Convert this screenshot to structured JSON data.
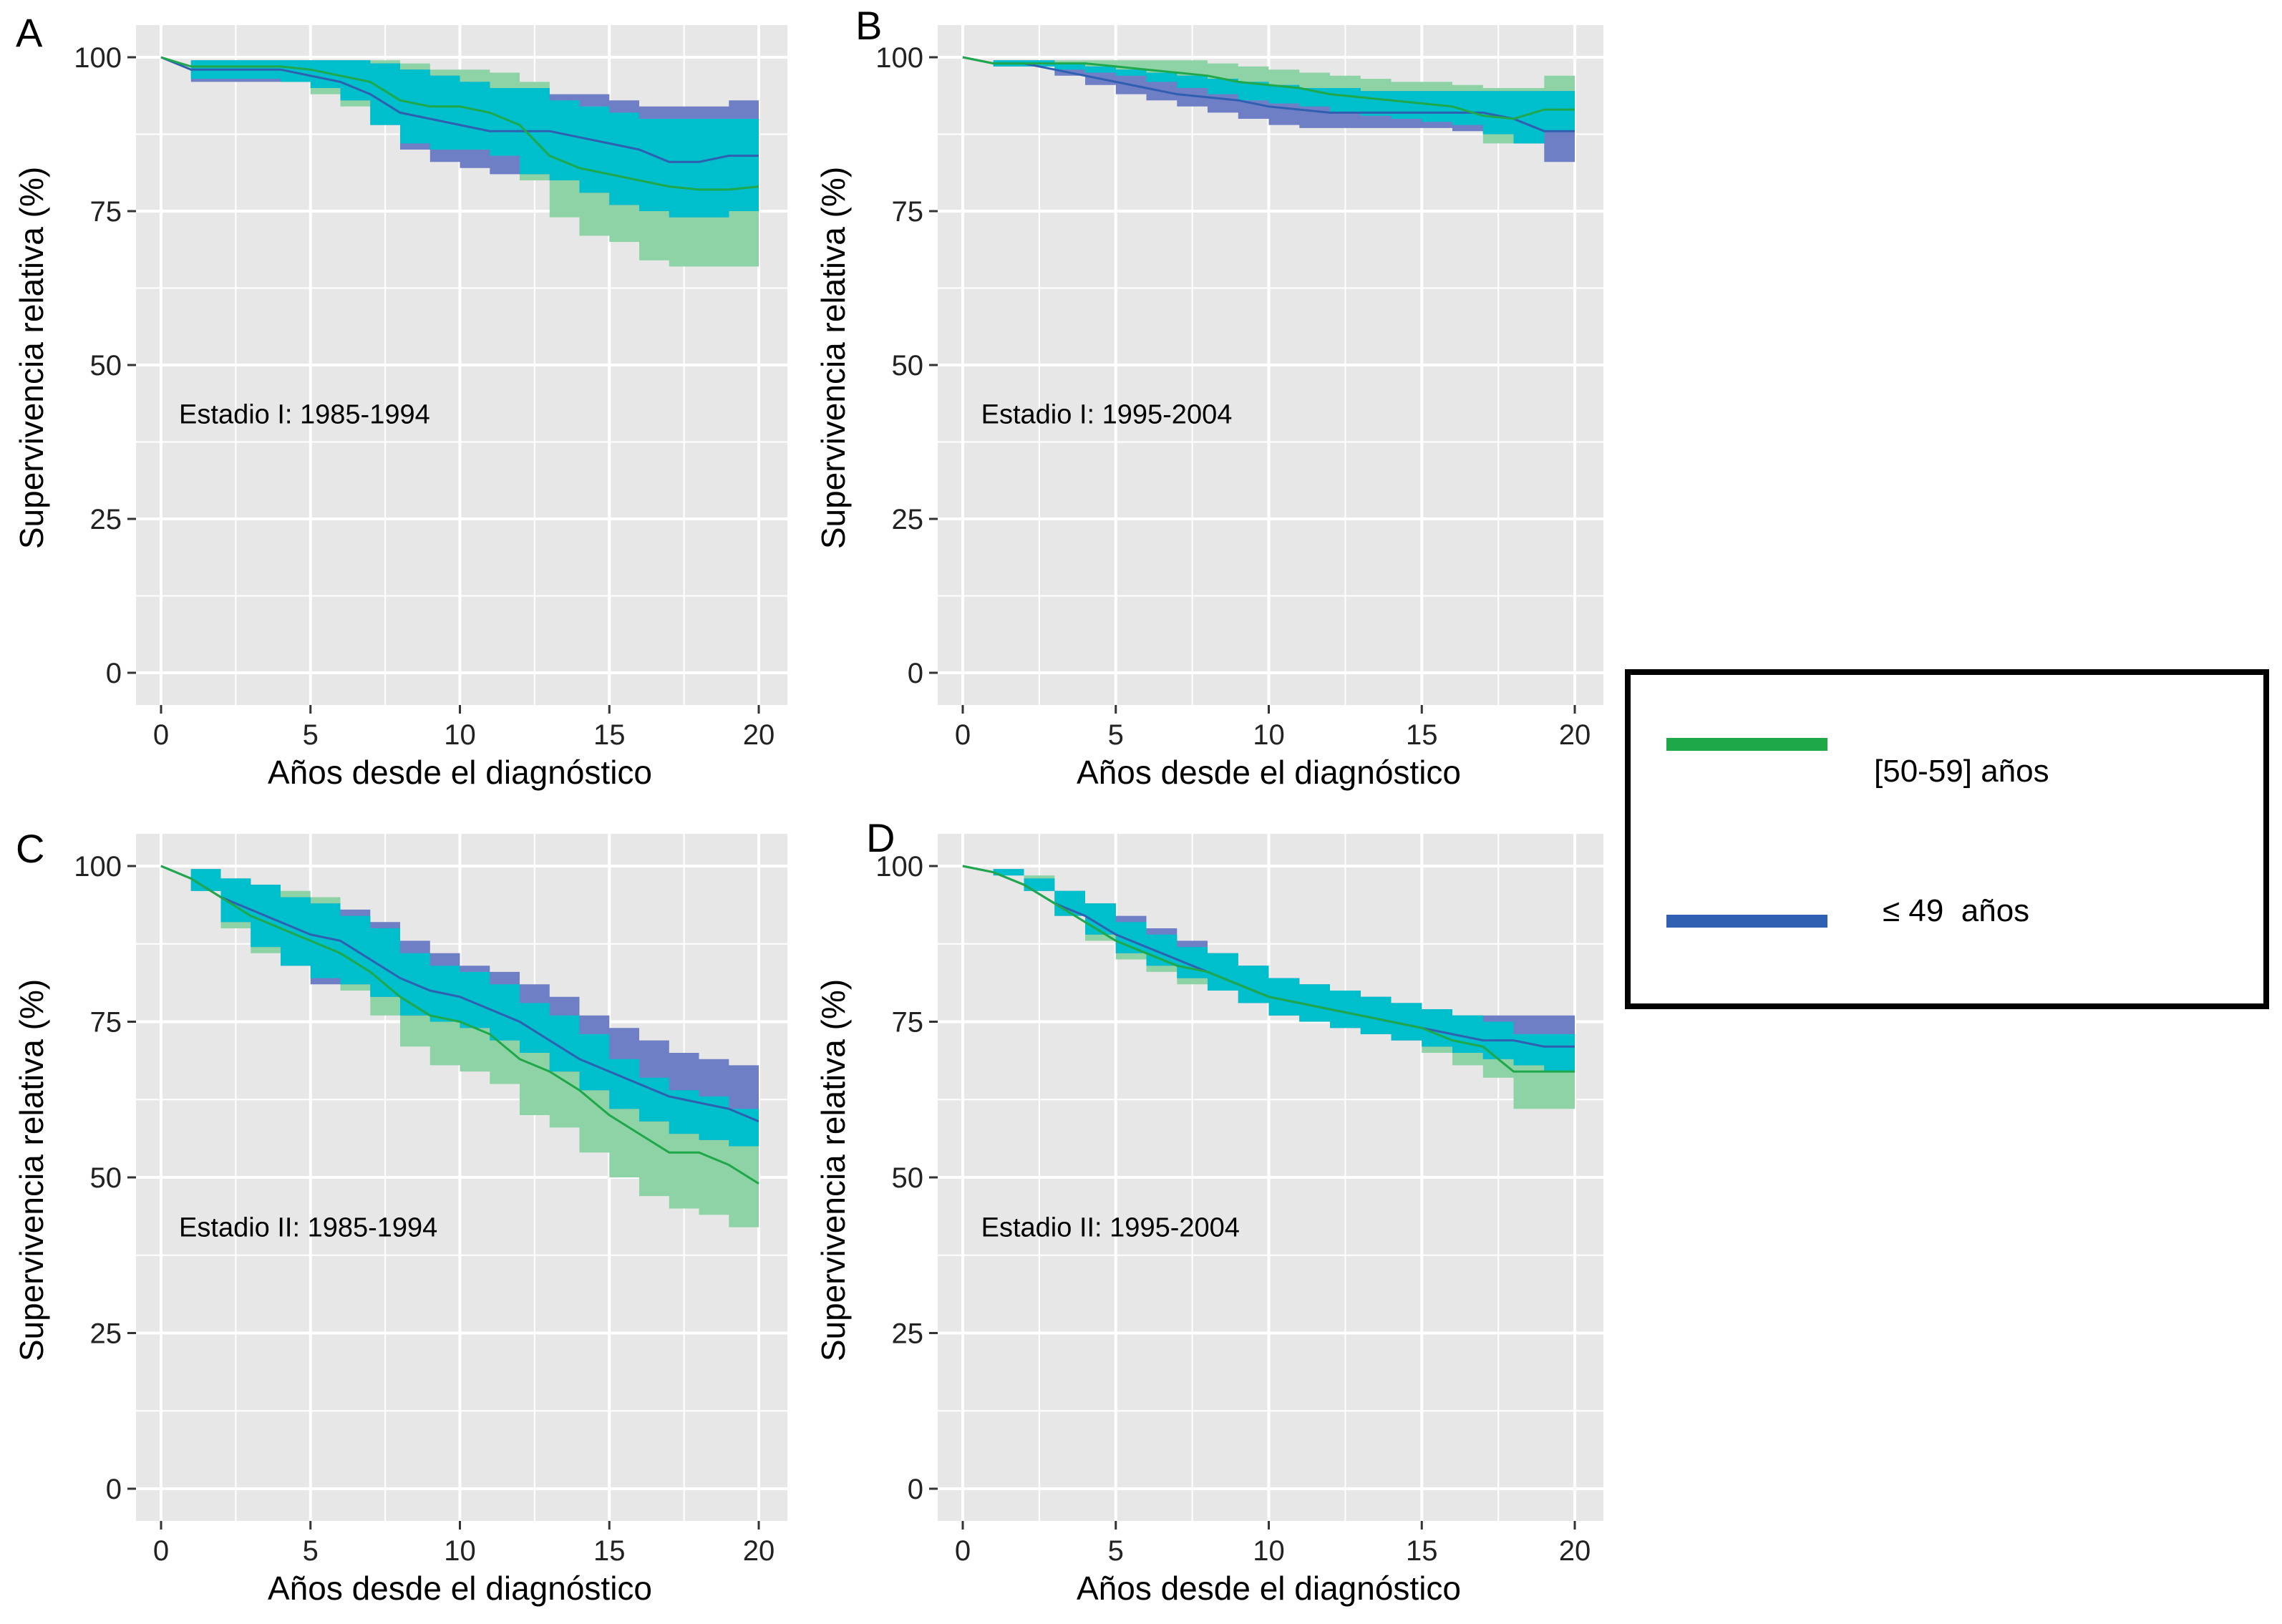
{
  "colors": {
    "panel_bg": "#e7e7e7",
    "grid": "#ffffff",
    "green_line": "#1fa84a",
    "green_band": "#8dd3a6",
    "blue_line": "#2f5fb0",
    "blue_band": "#6f7fc6",
    "overlap_band": "#00bfcc"
  },
  "legend": {
    "entries": [
      {
        "label": "[50-59] años",
        "color": "#1fa84a"
      },
      {
        "label": "≤ 49  años",
        "color": "#2f5fb0"
      }
    ]
  },
  "chart_data": [
    {
      "type": "line",
      "panel_letter": "A",
      "annotation": "Estadio I: 1985-1994",
      "xlabel": "Años desde el diagnóstico",
      "ylabel": "Supervivencia relativa (%)",
      "xlim": [
        0,
        20
      ],
      "ylim": [
        0,
        100
      ],
      "xticks": [
        0,
        5,
        10,
        15,
        20
      ],
      "yticks": [
        0,
        25,
        50,
        75,
        100
      ],
      "grid": true,
      "series": [
        {
          "name": "[50-59] años",
          "x": [
            0,
            1,
            2,
            3,
            4,
            5,
            6,
            7,
            8,
            9,
            10,
            11,
            12,
            13,
            14,
            15,
            16,
            17,
            18,
            19,
            20
          ],
          "y": [
            100,
            98.5,
            98.5,
            98.5,
            98.5,
            98,
            97,
            96,
            93,
            92,
            92,
            91,
            89,
            84,
            82,
            81,
            80,
            79,
            78.5,
            78.5,
            79
          ],
          "lower": [
            100,
            96.5,
            96.5,
            96.5,
            96,
            94,
            92,
            89,
            86,
            85,
            85,
            84,
            80,
            74,
            71,
            70,
            67,
            66,
            66,
            66,
            66
          ],
          "upper": [
            100,
            99.5,
            99.5,
            99.5,
            99.5,
            99.5,
            99.5,
            99.5,
            99,
            98,
            98,
            97.5,
            96,
            93,
            92,
            91,
            90,
            90,
            90,
            90,
            90
          ]
        },
        {
          "name": "≤ 49  años",
          "x": [
            0,
            1,
            2,
            3,
            4,
            5,
            6,
            7,
            8,
            9,
            10,
            11,
            12,
            13,
            14,
            15,
            16,
            17,
            18,
            19,
            20
          ],
          "y": [
            100,
            98,
            98,
            98,
            98,
            97,
            96,
            94,
            91,
            90,
            89,
            88,
            88,
            88,
            87,
            86,
            85,
            83,
            83,
            84,
            84
          ],
          "lower": [
            100,
            96,
            96,
            96,
            96,
            95,
            93,
            89,
            85,
            83,
            82,
            81,
            81,
            80,
            78,
            76,
            75,
            74,
            74,
            75,
            75
          ],
          "upper": [
            100,
            99.5,
            99.5,
            99.5,
            99.5,
            99.5,
            99.5,
            99,
            98,
            97,
            96,
            95,
            95,
            94,
            94,
            93,
            92,
            92,
            92,
            93,
            93
          ]
        }
      ]
    },
    {
      "type": "line",
      "panel_letter": "B",
      "annotation": "Estadio I: 1995-2004",
      "xlabel": "Años desde el diagnóstico",
      "ylabel": "Supervivencia relativa (%)",
      "xlim": [
        0,
        20
      ],
      "ylim": [
        0,
        100
      ],
      "xticks": [
        0,
        5,
        10,
        15,
        20
      ],
      "yticks": [
        0,
        25,
        50,
        75,
        100
      ],
      "grid": true,
      "series": [
        {
          "name": "[50-59] años",
          "x": [
            0,
            1,
            2,
            3,
            4,
            5,
            6,
            7,
            8,
            9,
            10,
            11,
            12,
            13,
            14,
            15,
            16,
            17,
            18,
            19,
            20
          ],
          "y": [
            100,
            99,
            99,
            99,
            99,
            98.5,
            98,
            97.5,
            97,
            96,
            95.5,
            95,
            94,
            93.5,
            93,
            92.5,
            92,
            90.5,
            90,
            91.5,
            91.5
          ],
          "lower": [
            100,
            98.5,
            98.5,
            98,
            97.5,
            97,
            96,
            95,
            94,
            93,
            92.5,
            92,
            91,
            90.5,
            90,
            89.5,
            89,
            86,
            86,
            88,
            88
          ],
          "upper": [
            100,
            99.5,
            99.5,
            99.5,
            99.5,
            99.5,
            99.5,
            99.5,
            99,
            98.5,
            98,
            97.5,
            97,
            96.5,
            96,
            96,
            95.5,
            95,
            95,
            97,
            97
          ]
        },
        {
          "name": "≤ 49  años",
          "x": [
            0,
            1,
            2,
            3,
            4,
            5,
            6,
            7,
            8,
            9,
            10,
            11,
            12,
            13,
            14,
            15,
            16,
            17,
            18,
            19,
            20
          ],
          "y": [
            100,
            99,
            99,
            98,
            97,
            96,
            95,
            94,
            93.5,
            93,
            92,
            91.5,
            91,
            91,
            91,
            91,
            91,
            91,
            90,
            88,
            88
          ],
          "lower": [
            100,
            98.5,
            98.5,
            97,
            95.5,
            94,
            93,
            92,
            91,
            90,
            89,
            88.5,
            88.5,
            88.5,
            88.5,
            88.5,
            88,
            87.5,
            86,
            83,
            83
          ],
          "upper": [
            100,
            99.5,
            99.5,
            99,
            98.5,
            98,
            97.5,
            97,
            96.5,
            96,
            95.5,
            95,
            95,
            94.5,
            94.5,
            94.5,
            94.5,
            94.5,
            94.5,
            94.5,
            94.5
          ]
        }
      ]
    },
    {
      "type": "line",
      "panel_letter": "C",
      "annotation": "Estadio II: 1985-1994",
      "xlabel": "Años desde el diagnóstico",
      "ylabel": "Supervivencia relativa (%)",
      "xlim": [
        0,
        20
      ],
      "ylim": [
        0,
        100
      ],
      "xticks": [
        0,
        5,
        10,
        15,
        20
      ],
      "yticks": [
        0,
        25,
        50,
        75,
        100
      ],
      "grid": true,
      "series": [
        {
          "name": "[50-59] años",
          "x": [
            0,
            1,
            2,
            3,
            4,
            5,
            6,
            7,
            8,
            9,
            10,
            11,
            12,
            13,
            14,
            15,
            16,
            17,
            18,
            19,
            20
          ],
          "y": [
            100,
            98,
            95,
            92,
            90,
            88,
            86,
            83,
            79,
            76,
            75,
            73,
            69,
            67,
            64,
            60,
            57,
            54,
            54,
            52,
            49
          ],
          "lower": [
            100,
            96,
            90,
            86,
            84,
            82,
            80,
            76,
            71,
            68,
            67,
            65,
            60,
            58,
            54,
            50,
            47,
            45,
            44,
            42,
            40
          ],
          "upper": [
            100,
            99.5,
            98,
            97,
            96,
            95,
            92,
            90,
            86,
            84,
            83,
            81,
            78,
            76,
            73,
            69,
            66,
            64,
            63,
            61,
            59
          ]
        },
        {
          "name": "≤ 49  años",
          "x": [
            0,
            1,
            2,
            3,
            4,
            5,
            6,
            7,
            8,
            9,
            10,
            11,
            12,
            13,
            14,
            15,
            16,
            17,
            18,
            19,
            20
          ],
          "y": [
            100,
            98,
            95,
            93,
            91,
            89,
            88,
            85,
            82,
            80,
            79,
            77,
            75,
            72,
            69,
            67,
            65,
            63,
            62,
            61,
            59
          ],
          "lower": [
            100,
            96,
            91,
            87,
            84,
            81,
            81,
            79,
            76,
            75,
            74,
            72,
            70,
            67,
            64,
            61,
            59,
            57,
            56,
            55,
            53
          ],
          "upper": [
            100,
            99.5,
            98,
            97,
            95,
            94,
            93,
            91,
            88,
            86,
            84,
            83,
            81,
            79,
            76,
            74,
            72,
            70,
            69,
            68,
            66
          ]
        }
      ]
    },
    {
      "type": "line",
      "panel_letter": "D",
      "annotation": "Estadio II: 1995-2004",
      "xlabel": "Años desde el diagnóstico",
      "ylabel": "Supervivencia relativa (%)",
      "xlim": [
        0,
        20
      ],
      "ylim": [
        0,
        100
      ],
      "xticks": [
        0,
        5,
        10,
        15,
        20
      ],
      "yticks": [
        0,
        25,
        50,
        75,
        100
      ],
      "grid": true,
      "series": [
        {
          "name": "[50-59] años",
          "x": [
            0,
            1,
            2,
            3,
            4,
            5,
            6,
            7,
            8,
            9,
            10,
            11,
            12,
            13,
            14,
            15,
            16,
            17,
            18,
            19,
            20
          ],
          "y": [
            100,
            99,
            97,
            94,
            91,
            88,
            86,
            84,
            83,
            81,
            79,
            78,
            77,
            76,
            75,
            74,
            72,
            71,
            67,
            67,
            67
          ],
          "lower": [
            100,
            98.5,
            96,
            92,
            88,
            85,
            83,
            81,
            80,
            78,
            76,
            75,
            74,
            73,
            72,
            70,
            68,
            66,
            61,
            61,
            61
          ],
          "upper": [
            100,
            99.5,
            98.5,
            96,
            94,
            91,
            89,
            87,
            86,
            84,
            82,
            81,
            80,
            79,
            78,
            77,
            76,
            75,
            73,
            73,
            73
          ]
        },
        {
          "name": "≤ 49  años",
          "x": [
            0,
            1,
            2,
            3,
            4,
            5,
            6,
            7,
            8,
            9,
            10,
            11,
            12,
            13,
            14,
            15,
            16,
            17,
            18,
            19,
            20
          ],
          "y": [
            100,
            99,
            97,
            94,
            92,
            89,
            87,
            85,
            83,
            81,
            79,
            78,
            77,
            76,
            75,
            74,
            73,
            72,
            72,
            71,
            71
          ],
          "lower": [
            100,
            98.5,
            96,
            92,
            89,
            86,
            84,
            82,
            80,
            78,
            76,
            75,
            74,
            73,
            72,
            71,
            70,
            69,
            68,
            67,
            67
          ],
          "upper": [
            100,
            99.5,
            98,
            96,
            94,
            92,
            90,
            88,
            86,
            84,
            82,
            81,
            80,
            79,
            78,
            77,
            76,
            76,
            76,
            76,
            76
          ]
        }
      ]
    }
  ]
}
